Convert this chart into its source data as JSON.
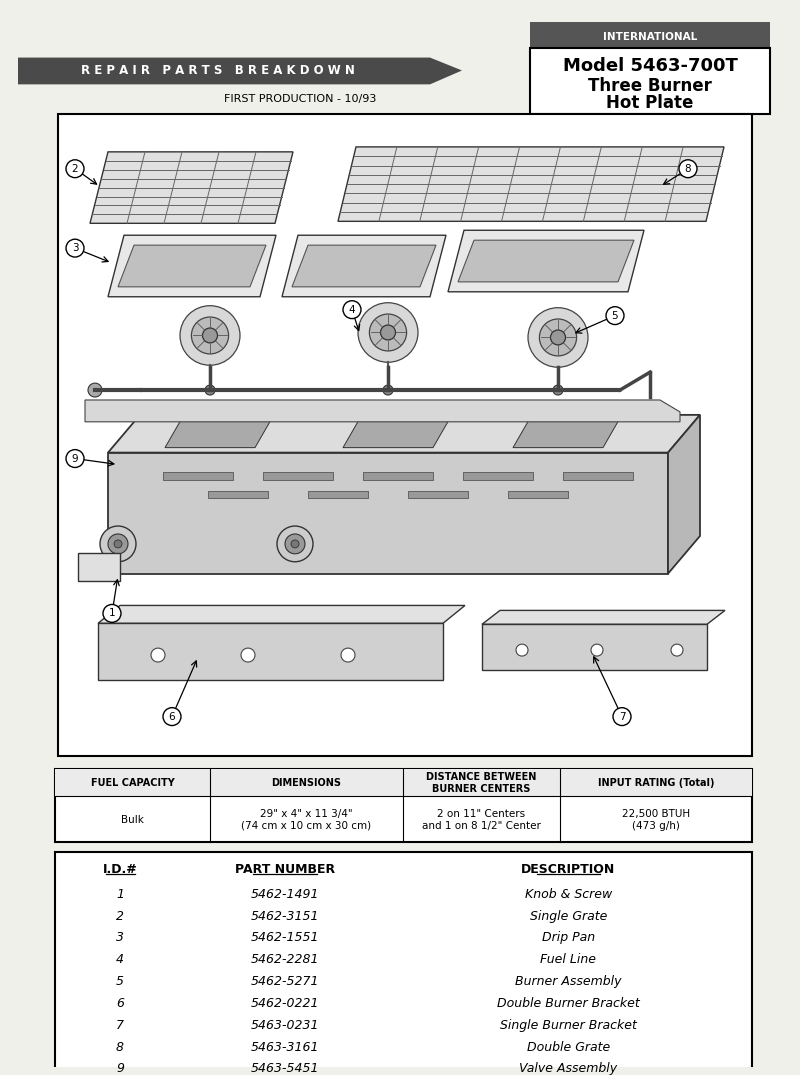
{
  "page_bg": "#f0f0eb",
  "title_banner_color": "#4a4a4a",
  "title_banner_text": "R E P A I R   P A R T S   B R E A K D O W N",
  "title_banner_text_color": "#ffffff",
  "intl_box_color": "#555555",
  "intl_text": "INTERNATIONAL",
  "model_title": "Model 5463-700T",
  "model_sub1": "Three Burner",
  "model_sub2": "Hot Plate",
  "first_production": "FIRST PRODUCTION - 10/93",
  "specs_headers": [
    "FUEL CAPACITY",
    "DIMENSIONS",
    "DISTANCE BETWEEN\nBURNER CENTERS",
    "INPUT RATING (Total)"
  ],
  "specs_values": [
    "Bulk",
    "29\" x 4\" x 11 3/4\"\n(74 cm x 10 cm x 30 cm)",
    "2 on 11\" Centers\nand 1 on 8 1/2\" Center",
    "22,500 BTUH\n(473 g/h)"
  ],
  "parts_headers": [
    "I.D.#",
    "PART NUMBER",
    "DESCRIPTION"
  ],
  "parts_ids": [
    "1",
    "2",
    "3",
    "4",
    "5",
    "6",
    "7",
    "8",
    "9"
  ],
  "parts_numbers": [
    "5462-1491",
    "5462-3151",
    "5462-1551",
    "5462-2281",
    "5462-5271",
    "5462-0221",
    "5463-0231",
    "5463-3161",
    "5463-5451"
  ],
  "parts_descriptions": [
    "Knob & Screw",
    "Single Grate",
    "Drip Pan",
    "Fuel Line",
    "Burner Assembly",
    "Double Burner Bracket",
    "Single Burner Bracket",
    "Double Grate",
    "Valve Assembly"
  ]
}
